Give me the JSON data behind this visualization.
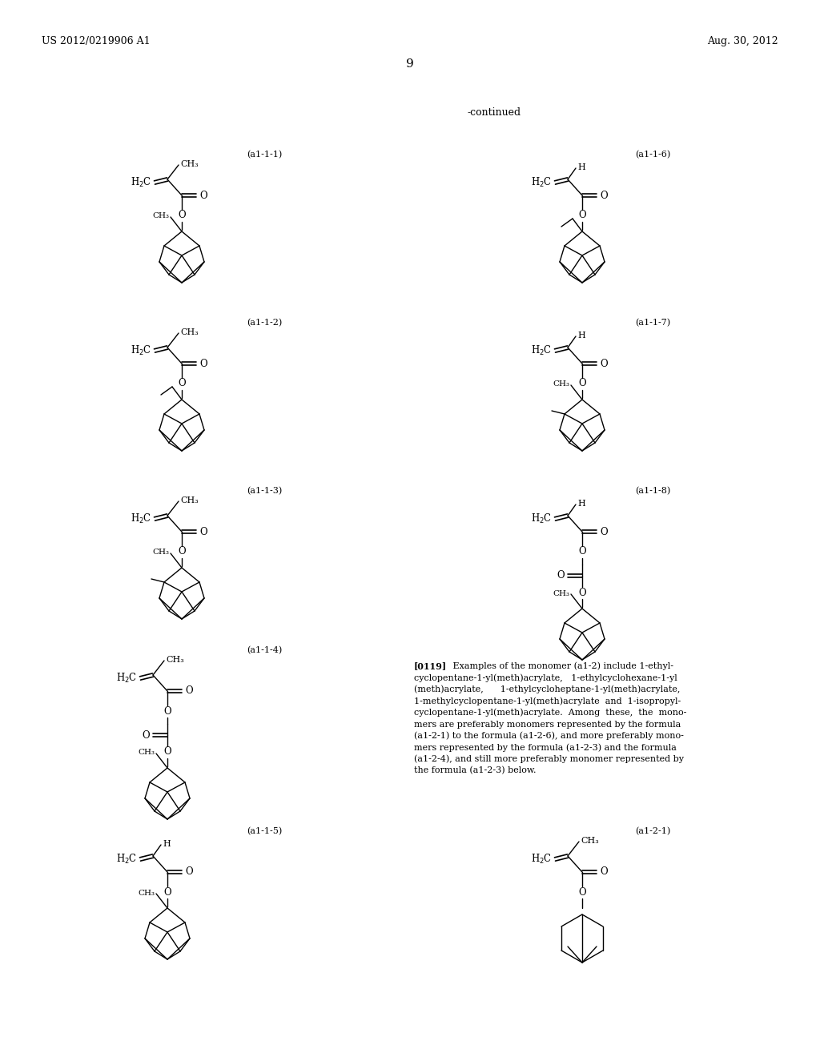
{
  "page_number": "9",
  "patent_number": "US 2012/0219906 A1",
  "patent_date": "Aug. 30, 2012",
  "continued_label": "-continued",
  "background_color": "#ffffff",
  "text_color": "#000000",
  "labels_left": [
    "(a1-1-1)",
    "(a1-1-2)",
    "(a1-1-3)",
    "(a1-1-4)",
    "(a1-1-5)"
  ],
  "labels_right": [
    "(a1-1-6)",
    "(a1-1-7)",
    "(a1-1-8)",
    "(a1-2-1)"
  ],
  "para_lines": [
    "[0119]   Examples of the monomer (a1-2) include 1-ethyl-",
    "cyclopentane-1-yl(meth)acrylate,   1-ethylcyclohexane-1-yl",
    "(meth)acrylate,      1-ethylcycloheptane-1-yl(meth)acrylate,",
    "1-methylcyclopentane-1-yl(meth)acrylate  and  1-isopropyl-",
    "cyclopentane-1-yl(meth)acrylate.  Among  these,  the  mono-",
    "mers are preferably monomers represented by the formula",
    "(a1-2-1) to the formula (a1-2-6), and more preferably mono-",
    "mers represented by the formula (a1-2-3) and the formula",
    "(a1-2-4), and still more preferably monomer represented by",
    "the formula (a1-2-3) below."
  ]
}
